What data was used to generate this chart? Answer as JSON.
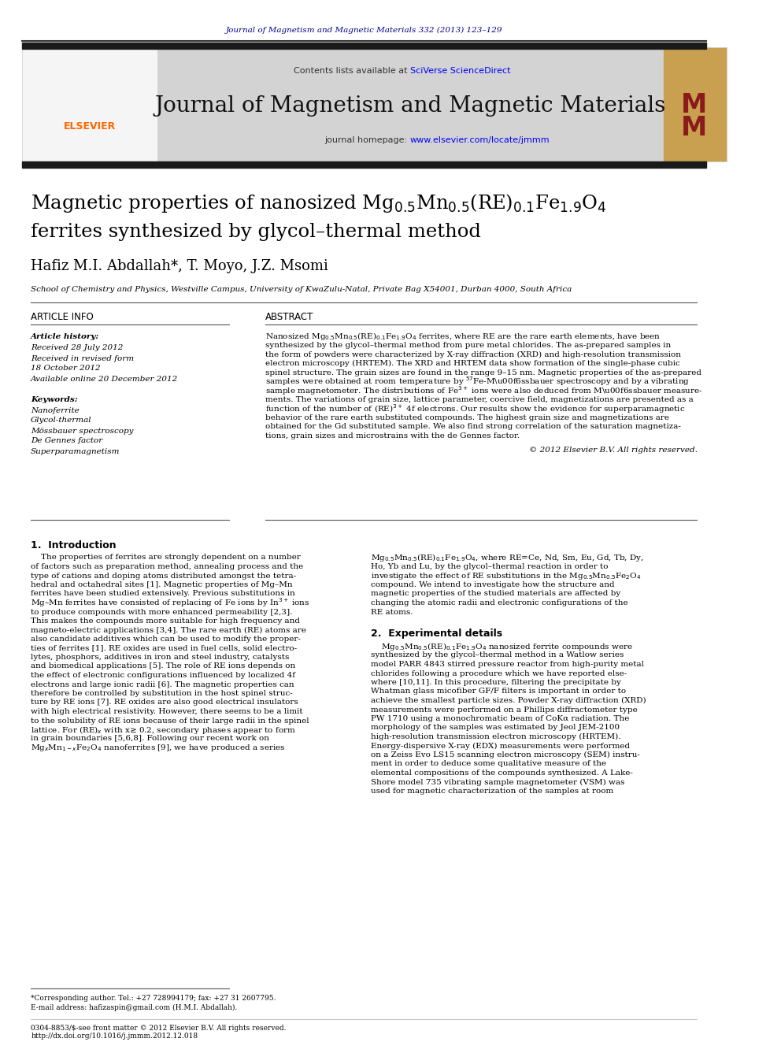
{
  "journal_ref": "Journal of Magnetism and Magnetic Materials 332 (2013) 123–129",
  "journal_ref_color": "#00008B",
  "header_bg": "#d3d3d3",
  "contents_text": "Contents lists available at ",
  "sciverse_text": "SciVerse ScienceDirect",
  "sciverse_color": "#0000FF",
  "journal_title": "Journal of Magnetism and Magnetic Materials",
  "homepage_text": "journal homepage: ",
  "homepage_url": "www.elsevier.com/locate/jmmm",
  "homepage_url_color": "#0000FF",
  "top_bar_color": "#1a1a1a",
  "article_title_line2": "ferrites synthesized by glycol–thermal method",
  "authors": "Hafiz M.I. Abdallah*, T. Moyo, J.Z. Msomi",
  "affiliation": "School of Chemistry and Physics, Westville Campus, University of KwaZulu-Natal, Private Bag X54001, Durban 4000, South Africa",
  "article_info_title": "ARTICLE INFO",
  "abstract_title": "ABSTRACT",
  "keywords": [
    "Nanoferrite",
    "Glycol-thermal",
    "Mössbauer spectroscopy",
    "De Gennes factor",
    "Superparamagnetism"
  ],
  "copyright_text": "© 2012 Elsevier B.V. All rights reserved.",
  "footnote_star": "*Corresponding author. Tel.: +27 728994179; fax: +27 31 2607795.",
  "footnote_email": "E-mail address: hafizaspin@gmail.com (H.M.I. Abdallah).",
  "footnote_issn": "0304-8853/$-see front matter © 2012 Elsevier B.V. All rights reserved.",
  "footnote_doi": "http://dx.doi.org/10.1016/j.jmmm.2012.12.018",
  "bg_color": "#ffffff",
  "text_color": "#000000"
}
